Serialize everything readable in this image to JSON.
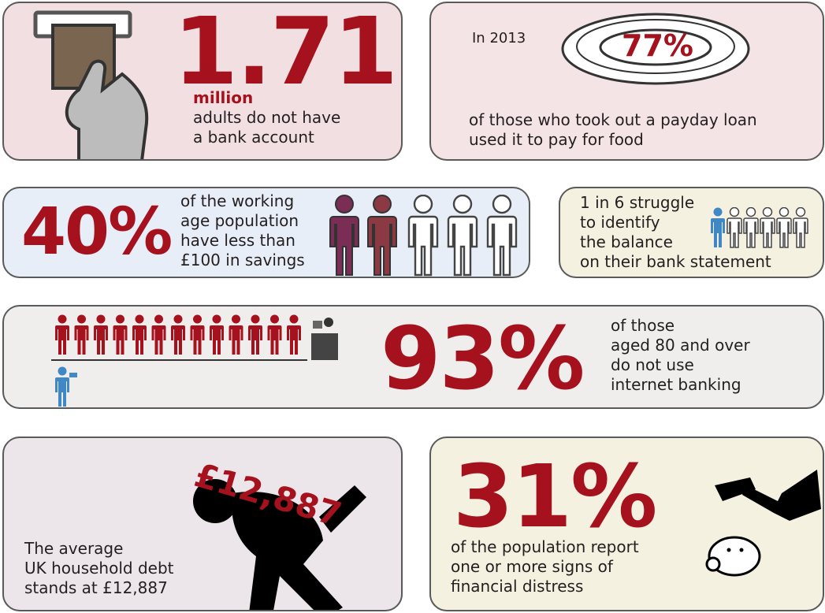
{
  "bank_account": {
    "figure": "1.71",
    "unit": "million",
    "lines": [
      "adults do not have",
      "a bank account"
    ]
  },
  "payday_loan": {
    "year": "In 2013",
    "figure": "77%",
    "lines": [
      "of those who took out a payday loan",
      "used it to pay for food"
    ]
  },
  "savings": {
    "figure": "40%",
    "lines": [
      "of the working",
      "age population",
      "have less than",
      "£100 in savings"
    ]
  },
  "bank_statement": {
    "lines": [
      "1 in 6 struggle",
      "to identify",
      "the balance",
      "on their bank statement"
    ]
  },
  "internet_banking": {
    "figure": "93%",
    "lines": [
      "of those",
      "aged 80 and over",
      "do not use",
      "internet banking"
    ]
  },
  "household_debt": {
    "figure": "£12,887",
    "lines": [
      "The average",
      "UK household debt",
      "stands at £12,887"
    ]
  },
  "financial_distress": {
    "figure": "31%",
    "lines": [
      "of the population report",
      "one or more signs of",
      "financial distress"
    ]
  }
}
